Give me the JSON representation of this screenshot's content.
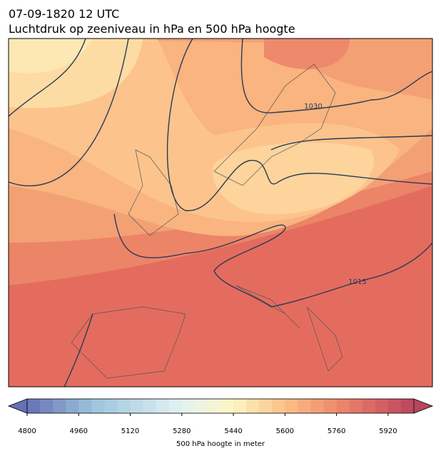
{
  "title": "07-09-1820 12 UTC",
  "subtitle": "Luchtdruk op zeeniveau in hPa en 500 hPa hoogte",
  "isobar_labels": [
    1030,
    1015
  ],
  "colorbar": {
    "label": "500 hPa hoogte in meter",
    "lim": [
      4800,
      6000
    ],
    "ticks": [
      4800,
      4960,
      5120,
      5280,
      5440,
      5600,
      5760,
      5920
    ]
  }
}
